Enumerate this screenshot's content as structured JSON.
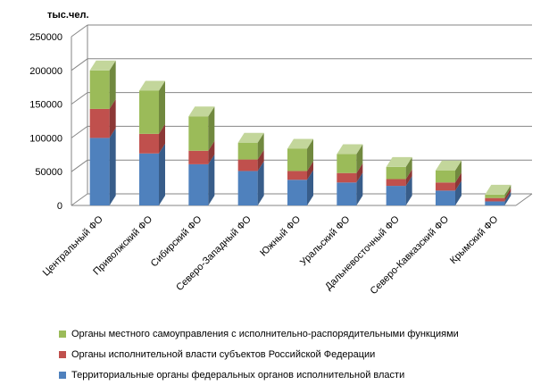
{
  "chart_data": {
    "type": "bar",
    "stacked": true,
    "style": "3d",
    "unit_label": "тыс.чел.",
    "categories": [
      "Центральный ФО",
      "Приволжский ФО",
      "Сибирский ФО",
      "Северо-Западный ФО",
      "Южный ФО",
      "Уральский ФО",
      "Дальневосточный  ФО",
      "Северо-Кавказский ФО",
      "Крымский ФО"
    ],
    "series": [
      {
        "name": "Территориальные  органы федеральных органов исполнительной власти",
        "color": "#4F81BD",
        "dark": "#385D8A",
        "top": "#95B3D7",
        "values": [
          100000,
          77000,
          61000,
          51000,
          38000,
          34000,
          29000,
          22000,
          6000
        ]
      },
      {
        "name": "Органы исполнительной власти субъектов Российской Федерации",
        "color": "#C0504D",
        "dark": "#8C3836",
        "top": "#D99694",
        "values": [
          43000,
          29000,
          20000,
          17000,
          13000,
          14000,
          10000,
          12000,
          5000
        ]
      },
      {
        "name": "Органы местного самоуправления с исполнительно-распорядительными  функциями",
        "color": "#9BBB59",
        "dark": "#71893F",
        "top": "#C3D69B",
        "values": [
          57000,
          64000,
          51000,
          25000,
          33000,
          28000,
          18000,
          18000,
          5000
        ]
      }
    ],
    "ylim": [
      0,
      250000
    ],
    "yticks": [
      0,
      50000,
      100000,
      150000,
      200000,
      250000
    ],
    "grid": true,
    "legend_position": "bottom"
  }
}
